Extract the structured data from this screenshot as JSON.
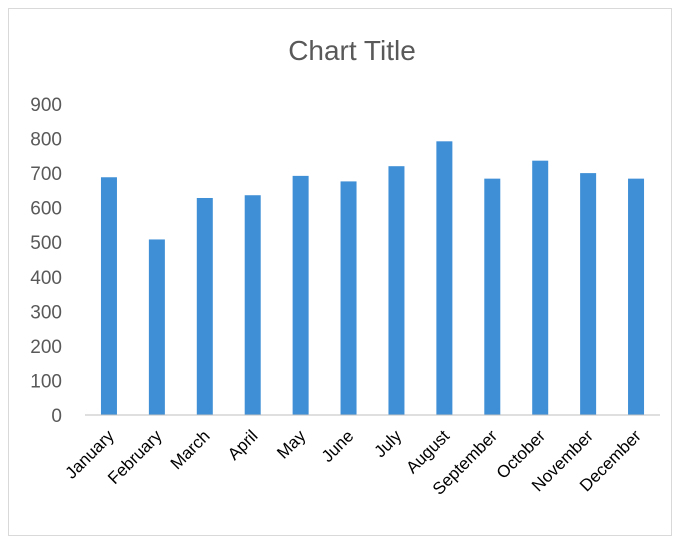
{
  "chart_data": {
    "type": "bar",
    "title": "Chart Title",
    "categories": [
      "January",
      "February",
      "March",
      "April",
      "May",
      "June",
      "July",
      "August",
      "September",
      "October",
      "November",
      "December"
    ],
    "values": [
      688,
      508,
      628,
      636,
      692,
      676,
      720,
      792,
      684,
      736,
      700,
      684
    ],
    "ylim": [
      0,
      900
    ],
    "yticks": [
      0,
      100,
      200,
      300,
      400,
      500,
      600,
      700,
      800,
      900
    ],
    "grid": false,
    "legend": "none",
    "bar_color": "#3f8fd6"
  }
}
